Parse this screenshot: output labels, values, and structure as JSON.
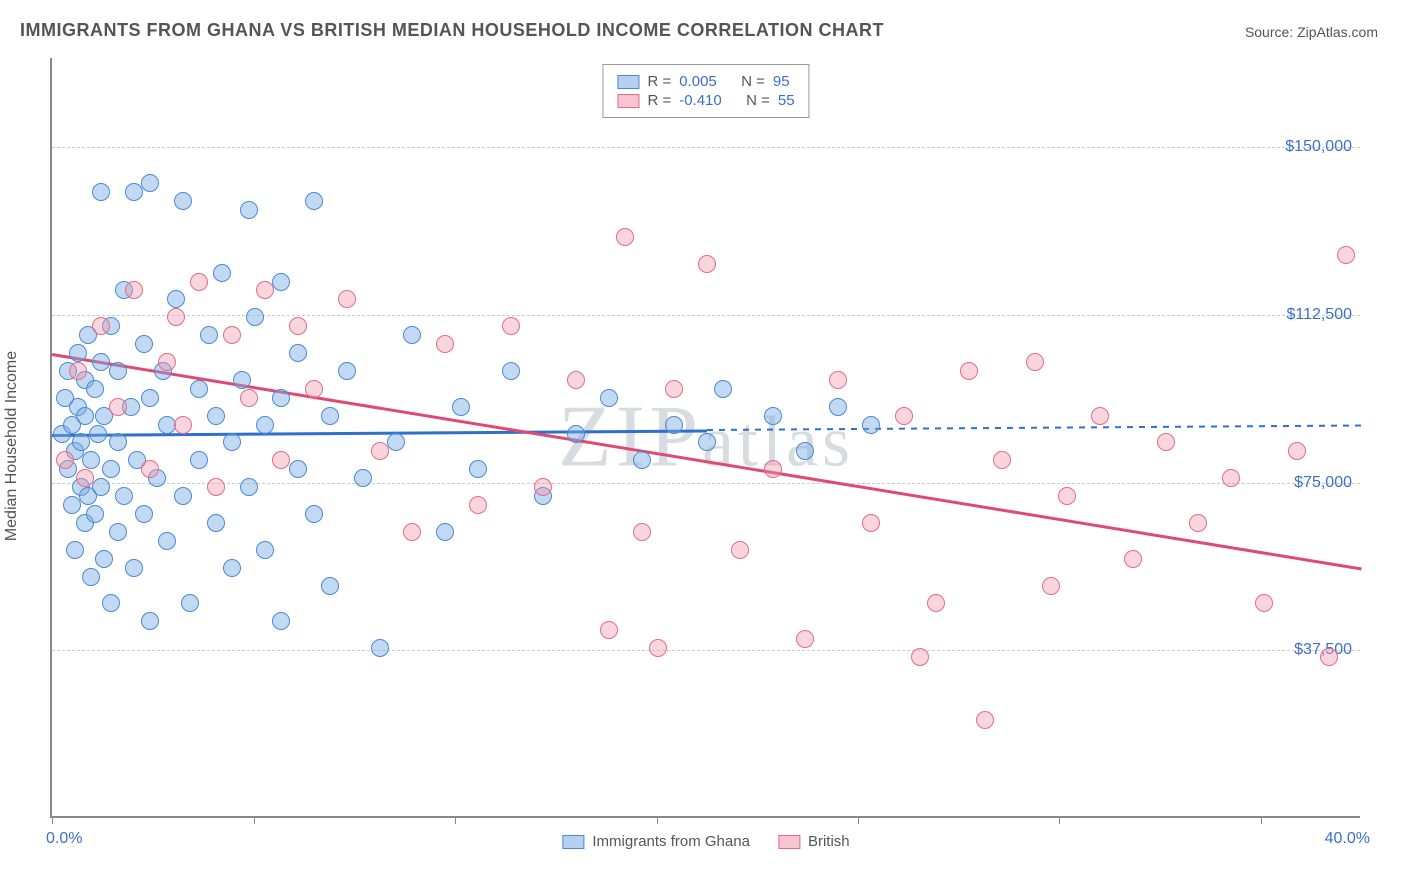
{
  "title": "IMMIGRANTS FROM GHANA VS BRITISH MEDIAN HOUSEHOLD INCOME CORRELATION CHART",
  "source": "Source: ZipAtlas.com",
  "watermark": "ZIPatlas",
  "chart": {
    "type": "scatter",
    "xlim": [
      0,
      40
    ],
    "ylim": [
      0,
      170000
    ],
    "xtick_labels": [
      "0.0%",
      "40.0%"
    ],
    "xtick_positions_pct": [
      0,
      15.4,
      30.8,
      46.2,
      61.5,
      76.9,
      92.3
    ],
    "ytick_values": [
      37500,
      75000,
      112500,
      150000
    ],
    "ytick_labels": [
      "$37,500",
      "$75,000",
      "$112,500",
      "$150,000"
    ],
    "ylabel": "Median Household Income",
    "background_color": "#ffffff",
    "grid_color": "#cccccc",
    "axis_color": "#888888",
    "label_color": "#3b6fc9",
    "marker_radius": 9,
    "series": [
      {
        "name": "Immigrants from Ghana",
        "key": "ghana",
        "color_fill": "rgba(120,170,230,0.45)",
        "color_stroke": "#4a8ad4",
        "R": "0.005",
        "N": "95",
        "trend": {
          "x1": 0,
          "y1": 86000,
          "x2": 20,
          "y2": 87000,
          "dash_after_x": 20,
          "x3": 40,
          "y3": 88000
        },
        "points": [
          [
            0.3,
            86000
          ],
          [
            0.4,
            94000
          ],
          [
            0.5,
            78000
          ],
          [
            0.5,
            100000
          ],
          [
            0.6,
            70000
          ],
          [
            0.6,
            88000
          ],
          [
            0.7,
            82000
          ],
          [
            0.7,
            60000
          ],
          [
            0.8,
            92000
          ],
          [
            0.8,
            104000
          ],
          [
            0.9,
            74000
          ],
          [
            0.9,
            84000
          ],
          [
            1.0,
            98000
          ],
          [
            1.0,
            66000
          ],
          [
            1.0,
            90000
          ],
          [
            1.1,
            108000
          ],
          [
            1.1,
            72000
          ],
          [
            1.2,
            80000
          ],
          [
            1.2,
            54000
          ],
          [
            1.3,
            96000
          ],
          [
            1.3,
            68000
          ],
          [
            1.4,
            86000
          ],
          [
            1.5,
            102000
          ],
          [
            1.5,
            74000
          ],
          [
            1.5,
            140000
          ],
          [
            1.6,
            58000
          ],
          [
            1.6,
            90000
          ],
          [
            1.8,
            110000
          ],
          [
            1.8,
            78000
          ],
          [
            1.8,
            48000
          ],
          [
            2.0,
            100000
          ],
          [
            2.0,
            64000
          ],
          [
            2.0,
            84000
          ],
          [
            2.2,
            118000
          ],
          [
            2.2,
            72000
          ],
          [
            2.4,
            92000
          ],
          [
            2.5,
            140000
          ],
          [
            2.5,
            56000
          ],
          [
            2.6,
            80000
          ],
          [
            2.8,
            106000
          ],
          [
            2.8,
            68000
          ],
          [
            3.0,
            94000
          ],
          [
            3.0,
            142000
          ],
          [
            3.0,
            44000
          ],
          [
            3.2,
            76000
          ],
          [
            3.4,
            100000
          ],
          [
            3.5,
            62000
          ],
          [
            3.5,
            88000
          ],
          [
            3.8,
            116000
          ],
          [
            4.0,
            72000
          ],
          [
            4.0,
            138000
          ],
          [
            4.2,
            48000
          ],
          [
            4.5,
            96000
          ],
          [
            4.5,
            80000
          ],
          [
            4.8,
            108000
          ],
          [
            5.0,
            66000
          ],
          [
            5.0,
            90000
          ],
          [
            5.2,
            122000
          ],
          [
            5.5,
            56000
          ],
          [
            5.5,
            84000
          ],
          [
            5.8,
            98000
          ],
          [
            6.0,
            74000
          ],
          [
            6.0,
            136000
          ],
          [
            6.2,
            112000
          ],
          [
            6.5,
            60000
          ],
          [
            6.5,
            88000
          ],
          [
            7.0,
            44000
          ],
          [
            7.0,
            94000
          ],
          [
            7.0,
            120000
          ],
          [
            7.5,
            78000
          ],
          [
            7.5,
            104000
          ],
          [
            8.0,
            68000
          ],
          [
            8.0,
            138000
          ],
          [
            8.5,
            90000
          ],
          [
            8.5,
            52000
          ],
          [
            9.0,
            100000
          ],
          [
            9.5,
            76000
          ],
          [
            10.0,
            38000
          ],
          [
            10.5,
            84000
          ],
          [
            11.0,
            108000
          ],
          [
            12.0,
            64000
          ],
          [
            12.5,
            92000
          ],
          [
            13.0,
            78000
          ],
          [
            14.0,
            100000
          ],
          [
            15.0,
            72000
          ],
          [
            16.0,
            86000
          ],
          [
            17.0,
            94000
          ],
          [
            18.0,
            80000
          ],
          [
            19.0,
            88000
          ],
          [
            20.0,
            84000
          ],
          [
            20.5,
            96000
          ],
          [
            22.0,
            90000
          ],
          [
            23.0,
            82000
          ],
          [
            24.0,
            92000
          ],
          [
            25.0,
            88000
          ]
        ]
      },
      {
        "name": "British",
        "key": "british",
        "color_fill": "rgba(240,150,170,0.4)",
        "color_stroke": "#e86a8a",
        "R": "-0.410",
        "N": "55",
        "trend": {
          "x1": 0,
          "y1": 104000,
          "x2": 40,
          "y2": 56000
        },
        "points": [
          [
            0.4,
            80000
          ],
          [
            0.8,
            100000
          ],
          [
            1.0,
            76000
          ],
          [
            1.5,
            110000
          ],
          [
            2.0,
            92000
          ],
          [
            2.5,
            118000
          ],
          [
            3.0,
            78000
          ],
          [
            3.5,
            102000
          ],
          [
            3.8,
            112000
          ],
          [
            4.0,
            88000
          ],
          [
            4.5,
            120000
          ],
          [
            5.0,
            74000
          ],
          [
            5.5,
            108000
          ],
          [
            6.0,
            94000
          ],
          [
            6.5,
            118000
          ],
          [
            7.0,
            80000
          ],
          [
            7.5,
            110000
          ],
          [
            8.0,
            96000
          ],
          [
            9.0,
            116000
          ],
          [
            10.0,
            82000
          ],
          [
            11.0,
            64000
          ],
          [
            12.0,
            106000
          ],
          [
            13.0,
            70000
          ],
          [
            14.0,
            110000
          ],
          [
            15.0,
            74000
          ],
          [
            16.0,
            98000
          ],
          [
            17.0,
            42000
          ],
          [
            17.5,
            130000
          ],
          [
            18.0,
            64000
          ],
          [
            18.5,
            38000
          ],
          [
            19.0,
            96000
          ],
          [
            20.0,
            124000
          ],
          [
            21.0,
            60000
          ],
          [
            22.0,
            78000
          ],
          [
            23.0,
            40000
          ],
          [
            24.0,
            98000
          ],
          [
            25.0,
            66000
          ],
          [
            26.0,
            90000
          ],
          [
            26.5,
            36000
          ],
          [
            27.0,
            48000
          ],
          [
            28.0,
            100000
          ],
          [
            28.5,
            22000
          ],
          [
            29.0,
            80000
          ],
          [
            30.0,
            102000
          ],
          [
            30.5,
            52000
          ],
          [
            31.0,
            72000
          ],
          [
            32.0,
            90000
          ],
          [
            33.0,
            58000
          ],
          [
            34.0,
            84000
          ],
          [
            35.0,
            66000
          ],
          [
            36.0,
            76000
          ],
          [
            37.0,
            48000
          ],
          [
            38.0,
            82000
          ],
          [
            39.0,
            36000
          ],
          [
            39.5,
            126000
          ]
        ]
      }
    ],
    "legend_stats_labels": {
      "R": "R  =",
      "N": "N  ="
    },
    "bottom_legend": [
      "Immigrants from Ghana",
      "British"
    ]
  }
}
